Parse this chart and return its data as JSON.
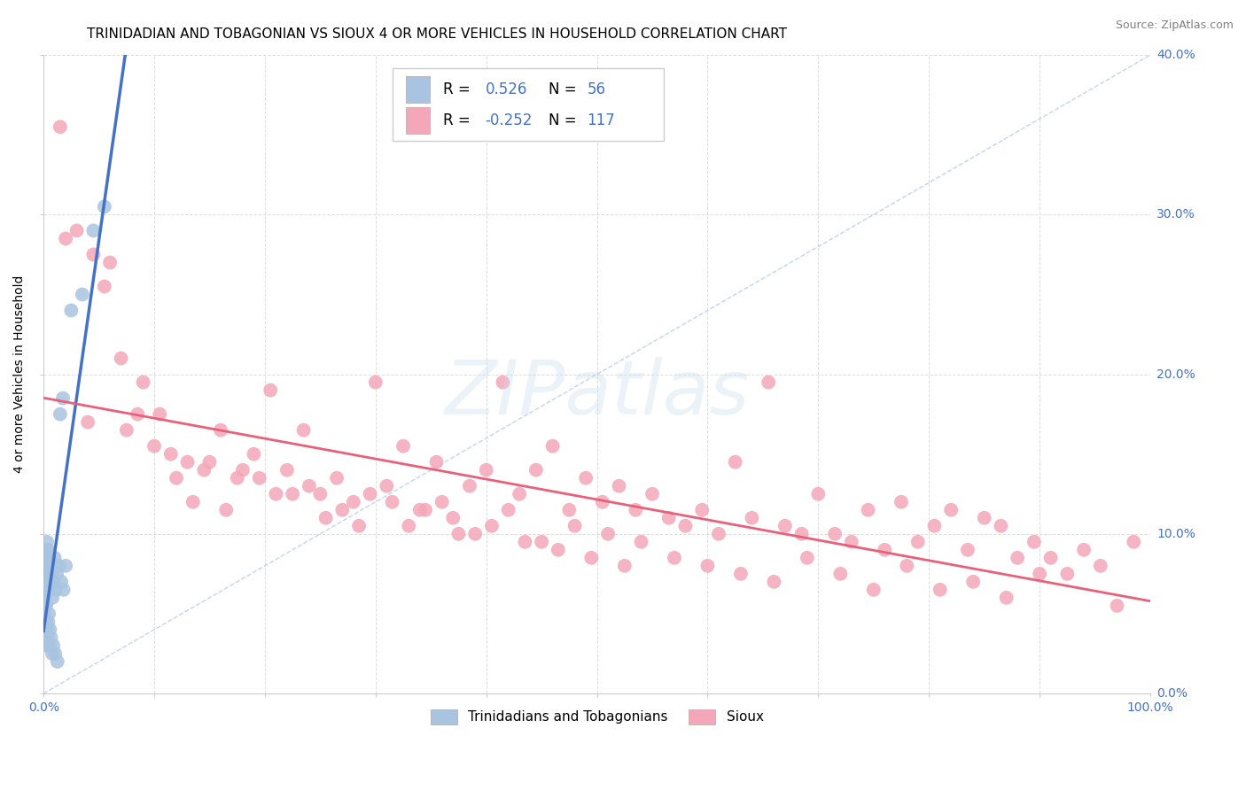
{
  "title": "TRINIDADIAN AND TOBAGONIAN VS SIOUX 4 OR MORE VEHICLES IN HOUSEHOLD CORRELATION CHART",
  "source": "Source: ZipAtlas.com",
  "ylabel": "4 or more Vehicles in Household",
  "r_tt": 0.526,
  "n_tt": 56,
  "r_sioux": -0.252,
  "n_sioux": 117,
  "legend_label_tt": "Trinidadians and Tobagonians",
  "legend_label_sioux": "Sioux",
  "color_tt": "#a8c4e0",
  "color_sioux": "#f4a7b9",
  "color_tt_line": "#4472c4",
  "color_sioux_line": "#e8607a",
  "color_diag": "#a8c4e0",
  "color_r": "#4472c4",
  "xlim": [
    0,
    100
  ],
  "ylim": [
    0,
    40
  ],
  "xticks": [
    0,
    10,
    20,
    30,
    40,
    50,
    60,
    70,
    80,
    90,
    100
  ],
  "yticks": [
    0,
    10,
    20,
    30,
    40
  ],
  "bg_color": "#ffffff",
  "grid_color": "#dddddd",
  "title_fontsize": 11,
  "axis_label_fontsize": 10,
  "tick_fontsize": 10,
  "legend_fontsize": 12,
  "tt_x": [
    0.05,
    0.08,
    0.1,
    0.12,
    0.15,
    0.18,
    0.2,
    0.22,
    0.25,
    0.28,
    0.3,
    0.32,
    0.35,
    0.38,
    0.4,
    0.45,
    0.5,
    0.55,
    0.6,
    0.65,
    0.7,
    0.8,
    0.9,
    1.0,
    1.1,
    1.2,
    1.4,
    1.6,
    1.8,
    2.0,
    0.05,
    0.07,
    0.09,
    0.11,
    0.13,
    0.16,
    0.19,
    0.23,
    0.27,
    0.31,
    0.36,
    0.42,
    0.48,
    0.53,
    0.58,
    0.68,
    0.78,
    0.88,
    1.05,
    1.25,
    1.5,
    1.75,
    2.5,
    3.5,
    4.5,
    5.5
  ],
  "tt_y": [
    5.5,
    6.0,
    5.8,
    7.0,
    6.5,
    7.5,
    7.0,
    8.0,
    8.5,
    9.0,
    8.0,
    9.5,
    8.5,
    7.5,
    9.0,
    7.5,
    8.5,
    6.5,
    7.0,
    8.0,
    7.5,
    6.0,
    7.0,
    8.5,
    6.5,
    7.5,
    8.0,
    7.0,
    6.5,
    8.0,
    4.5,
    5.0,
    3.5,
    4.0,
    5.5,
    6.0,
    4.5,
    5.5,
    3.0,
    4.0,
    3.5,
    4.5,
    5.0,
    3.0,
    4.0,
    3.5,
    2.5,
    3.0,
    2.5,
    2.0,
    17.5,
    18.5,
    24.0,
    25.0,
    29.0,
    30.5
  ],
  "sioux_x": [
    1.5,
    3.0,
    4.5,
    5.5,
    7.0,
    8.5,
    10.0,
    11.5,
    13.0,
    14.5,
    16.0,
    17.5,
    19.0,
    20.5,
    22.0,
    23.5,
    25.0,
    26.5,
    28.0,
    29.5,
    31.0,
    32.5,
    34.0,
    35.5,
    37.0,
    38.5,
    40.0,
    41.5,
    43.0,
    44.5,
    46.0,
    47.5,
    49.0,
    50.5,
    52.0,
    53.5,
    55.0,
    56.5,
    58.0,
    59.5,
    61.0,
    62.5,
    64.0,
    65.5,
    67.0,
    68.5,
    70.0,
    71.5,
    73.0,
    74.5,
    76.0,
    77.5,
    79.0,
    80.5,
    82.0,
    83.5,
    85.0,
    86.5,
    88.0,
    89.5,
    91.0,
    92.5,
    94.0,
    95.5,
    97.0,
    98.5,
    2.0,
    6.0,
    9.0,
    12.0,
    15.0,
    18.0,
    21.0,
    24.0,
    27.0,
    30.0,
    33.0,
    36.0,
    39.0,
    42.0,
    45.0,
    48.0,
    51.0,
    54.0,
    57.0,
    60.0,
    63.0,
    66.0,
    69.0,
    72.0,
    75.0,
    78.0,
    81.0,
    84.0,
    87.0,
    90.0,
    4.0,
    7.5,
    10.5,
    13.5,
    16.5,
    19.5,
    22.5,
    25.5,
    28.5,
    31.5,
    34.5,
    37.5,
    40.5,
    43.5,
    46.5,
    49.5,
    52.5
  ],
  "sioux_y": [
    35.5,
    29.0,
    27.5,
    25.5,
    21.0,
    17.5,
    15.5,
    15.0,
    14.5,
    14.0,
    16.5,
    13.5,
    15.0,
    19.0,
    14.0,
    16.5,
    12.5,
    13.5,
    12.0,
    12.5,
    13.0,
    15.5,
    11.5,
    14.5,
    11.0,
    13.0,
    14.0,
    19.5,
    12.5,
    14.0,
    15.5,
    11.5,
    13.5,
    12.0,
    13.0,
    11.5,
    12.5,
    11.0,
    10.5,
    11.5,
    10.0,
    14.5,
    11.0,
    19.5,
    10.5,
    10.0,
    12.5,
    10.0,
    9.5,
    11.5,
    9.0,
    12.0,
    9.5,
    10.5,
    11.5,
    9.0,
    11.0,
    10.5,
    8.5,
    9.5,
    8.5,
    7.5,
    9.0,
    8.0,
    5.5,
    9.5,
    28.5,
    27.0,
    19.5,
    13.5,
    14.5,
    14.0,
    12.5,
    13.0,
    11.5,
    19.5,
    10.5,
    12.0,
    10.0,
    11.5,
    9.5,
    10.5,
    10.0,
    9.5,
    8.5,
    8.0,
    7.5,
    7.0,
    8.5,
    7.5,
    6.5,
    8.0,
    6.5,
    7.0,
    6.0,
    7.5,
    17.0,
    16.5,
    17.5,
    12.0,
    11.5,
    13.5,
    12.5,
    11.0,
    10.5,
    12.0,
    11.5,
    10.0,
    10.5,
    9.5,
    9.0,
    8.5,
    8.0
  ]
}
